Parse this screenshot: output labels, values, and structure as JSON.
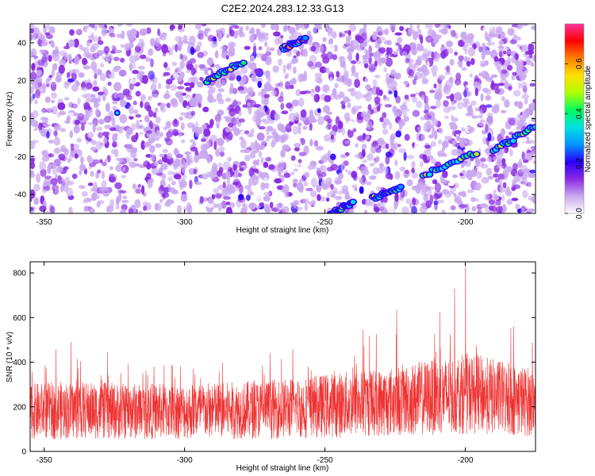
{
  "title": "C2E2.2024.283.12.33.G13",
  "chart_data": [
    {
      "type": "heatmap",
      "xlabel": "Height of straight line (km)",
      "ylabel": "Frequency (Hz)",
      "xlim": [
        -355,
        -175
      ],
      "ylim": [
        -50,
        50
      ],
      "x_ticks": [
        -350,
        -300,
        -250,
        -200
      ],
      "y_ticks": [
        -40,
        -20,
        0,
        20,
        40
      ],
      "colorbar": {
        "label": "Normalized spectral amplitude",
        "range": [
          0,
          0.76
        ],
        "ticks": [
          "0.0",
          "0.2",
          "0.4",
          "0.6"
        ],
        "colors": [
          "#ffffff",
          "#c9a7f0",
          "#8a2be2",
          "#2b00ff",
          "#0096ff",
          "#00e0e0",
          "#00ff60",
          "#b0ff00",
          "#ffe000",
          "#ff8000",
          "#ff0000",
          "#ff3399"
        ]
      },
      "track_segments": [
        {
          "x": [
            -292,
            -279
          ],
          "y": [
            20,
            30
          ]
        },
        {
          "x": [
            -265,
            -257
          ],
          "y": [
            37,
            42
          ]
        },
        {
          "x": [
            -248,
            -240
          ],
          "y": [
            -50,
            -44
          ]
        },
        {
          "x": [
            -233,
            -223
          ],
          "y": [
            -42,
            -37
          ]
        },
        {
          "x": [
            -215,
            -196
          ],
          "y": [
            -30,
            -18
          ]
        },
        {
          "x": [
            -190,
            -175
          ],
          "y": [
            -17,
            -4
          ]
        }
      ],
      "isolated_peaks": [
        {
          "x": -324,
          "y": 3
        }
      ]
    },
    {
      "type": "line",
      "xlabel": "Height of straight line (km)",
      "ylabel": "SNR (10 * v/v)",
      "xlim": [
        -355,
        -175
      ],
      "ylim": [
        0,
        850
      ],
      "x_ticks": [
        -350,
        -300,
        -250,
        -200
      ],
      "y_ticks": [
        0,
        200,
        400,
        600,
        800
      ],
      "series": [
        {
          "color": "#ee3333",
          "envelope": {
            "x": [
              -355,
              -340,
              -320,
              -300,
              -280,
              -260,
              -245,
              -230,
              -215,
              -205,
              -200,
              -195,
              -185,
              -175
            ],
            "mean": [
              180,
              185,
              180,
              180,
              185,
              195,
              210,
              220,
              240,
              250,
              260,
              255,
              235,
              220
            ],
            "peak": [
              420,
              500,
              420,
              400,
              420,
              480,
              600,
              640,
              660,
              700,
              850,
              680,
              620,
              520
            ]
          }
        }
      ]
    }
  ]
}
